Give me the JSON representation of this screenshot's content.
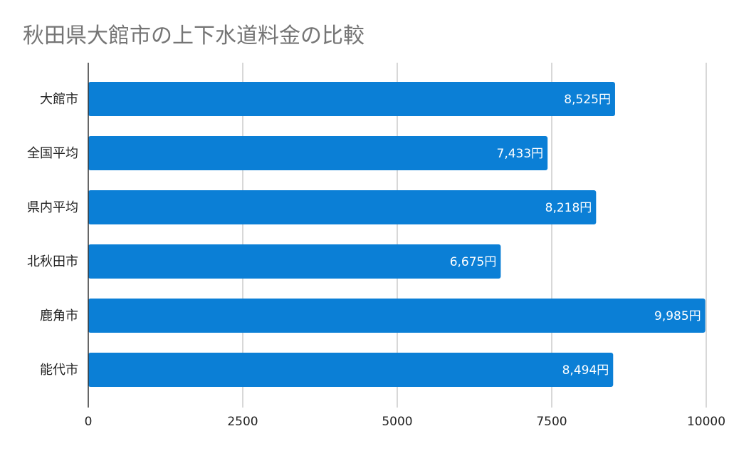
{
  "chart_data": {
    "type": "bar",
    "orientation": "horizontal",
    "title": "秋田県大館市の上下水道料金の比較",
    "categories": [
      "大館市",
      "全国平均",
      "県内平均",
      "北秋田市",
      "鹿角市",
      "能代市"
    ],
    "values": [
      8525,
      7433,
      8218,
      6675,
      9985,
      8494
    ],
    "data_labels": [
      "8,525円",
      "7,433円",
      "8,218円",
      "6,675円",
      "9,985円",
      "8,494円"
    ],
    "x_ticks": [
      "0",
      "2500",
      "5000",
      "7500",
      "10000"
    ],
    "xlim": [
      0,
      10000
    ],
    "grid": "vertical",
    "legend": "none",
    "colors": {
      "bar": "#0b7fd6",
      "grid": "#cccccc",
      "axis": "#333333",
      "title": "#757575"
    }
  }
}
